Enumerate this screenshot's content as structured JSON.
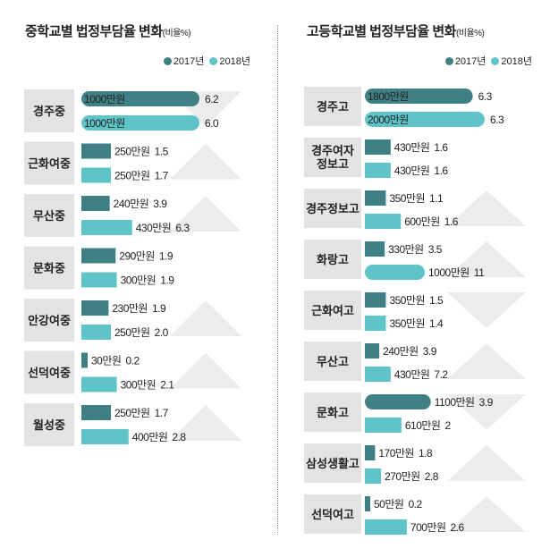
{
  "colors": {
    "y2017": "#3f8085",
    "y2018": "#5ec4c8",
    "label_bg": "#e3e3e3",
    "triangle": "#ececec"
  },
  "legend": {
    "y2017": "2017년",
    "y2018": "2018년"
  },
  "left": {
    "title": "중학교별 법정부담율 변화",
    "unit": "(비율%)"
  },
  "right": {
    "title": "고등학교별 법정부담율 변화",
    "unit": "(비율%)"
  },
  "chart_data": [
    {
      "type": "bar",
      "title": "중학교별 법정부담율 변화(비율%)",
      "series_names": [
        "2017년",
        "2018년"
      ],
      "schools": [
        {
          "name": "경주중",
          "y2017": {
            "amount": "1000만원",
            "rate": "6.2",
            "won": 1000
          },
          "y2018": {
            "amount": "1000만원",
            "rate": "6.0",
            "won": 1000
          },
          "trend": "down"
        },
        {
          "name": "근화여중",
          "y2017": {
            "amount": "250만원",
            "rate": "1.5",
            "won": 250
          },
          "y2018": {
            "amount": "250만원",
            "rate": "1.7",
            "won": 250
          },
          "trend": "up"
        },
        {
          "name": "무산중",
          "y2017": {
            "amount": "240만원",
            "rate": "3.9",
            "won": 240
          },
          "y2018": {
            "amount": "430만원",
            "rate": "6.3",
            "won": 430
          },
          "trend": "up"
        },
        {
          "name": "문화중",
          "y2017": {
            "amount": "290만원",
            "rate": "1.9",
            "won": 290
          },
          "y2018": {
            "amount": "300만원",
            "rate": "1.9",
            "won": 300
          },
          "trend": "none"
        },
        {
          "name": "안강여중",
          "y2017": {
            "amount": "230만원",
            "rate": "1.9",
            "won": 230
          },
          "y2018": {
            "amount": "250만원",
            "rate": "2.0",
            "won": 250
          },
          "trend": "up"
        },
        {
          "name": "선덕여중",
          "y2017": {
            "amount": "30만원",
            "rate": "0.2",
            "won": 30
          },
          "y2018": {
            "amount": "300만원",
            "rate": "2.1",
            "won": 300
          },
          "trend": "up"
        },
        {
          "name": "월성중",
          "y2017": {
            "amount": "250만원",
            "rate": "1.7",
            "won": 250
          },
          "y2018": {
            "amount": "400만원",
            "rate": "2.8",
            "won": 400
          },
          "trend": "up"
        }
      ]
    },
    {
      "type": "bar",
      "title": "고등학교별 법정부담율 변화(비율%)",
      "series_names": [
        "2017년",
        "2018년"
      ],
      "schools": [
        {
          "name": "경주고",
          "y2017": {
            "amount": "1800만원",
            "rate": "6.3",
            "won": 1800
          },
          "y2018": {
            "amount": "2000만원",
            "rate": "6.3",
            "won": 2000
          },
          "trend": "none"
        },
        {
          "name": "경주여자 정보고",
          "y2017": {
            "amount": "430만원",
            "rate": "1.6",
            "won": 430
          },
          "y2018": {
            "amount": "430만원",
            "rate": "1.6",
            "won": 430
          },
          "trend": "none"
        },
        {
          "name": "경주정보고",
          "y2017": {
            "amount": "350만원",
            "rate": "1.1",
            "won": 350
          },
          "y2018": {
            "amount": "600만원",
            "rate": "1.6",
            "won": 600
          },
          "trend": "up"
        },
        {
          "name": "화랑고",
          "y2017": {
            "amount": "330만원",
            "rate": "3.5",
            "won": 330
          },
          "y2018": {
            "amount": "1000만원",
            "rate": "11",
            "won": 1000
          },
          "trend": "up"
        },
        {
          "name": "근화여고",
          "y2017": {
            "amount": "350만원",
            "rate": "1.5",
            "won": 350
          },
          "y2018": {
            "amount": "350만원",
            "rate": "1.4",
            "won": 350
          },
          "trend": "down"
        },
        {
          "name": "무산고",
          "y2017": {
            "amount": "240만원",
            "rate": "3.9",
            "won": 240
          },
          "y2018": {
            "amount": "430만원",
            "rate": "7.2",
            "won": 430
          },
          "trend": "up"
        },
        {
          "name": "문화고",
          "y2017": {
            "amount": "1100만원",
            "rate": "3.9",
            "won": 1100
          },
          "y2018": {
            "amount": "610만원",
            "rate": "2",
            "won": 610
          },
          "trend": "down"
        },
        {
          "name": "삼성생활고",
          "y2017": {
            "amount": "170만원",
            "rate": "1.8",
            "won": 170
          },
          "y2018": {
            "amount": "270만원",
            "rate": "2.8",
            "won": 270
          },
          "trend": "up"
        },
        {
          "name": "선덕여고",
          "y2017": {
            "amount": "50만원",
            "rate": "0.2",
            "won": 50
          },
          "y2018": {
            "amount": "700만원",
            "rate": "2.6",
            "won": 700
          },
          "trend": "up"
        }
      ]
    }
  ]
}
